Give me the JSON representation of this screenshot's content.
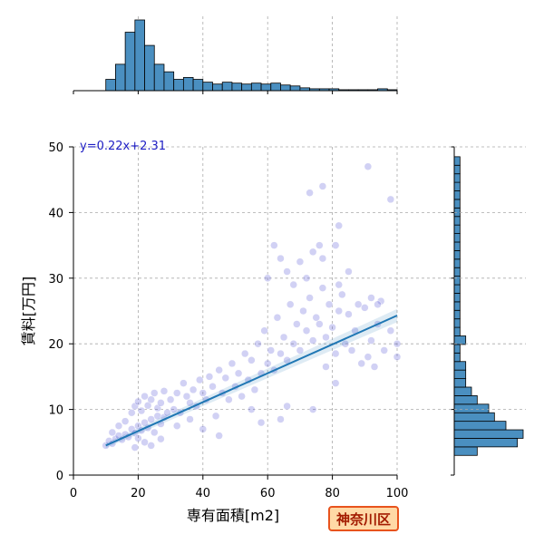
{
  "badge": {
    "text": "神奈川区"
  },
  "chart_data": {
    "type": "scatter",
    "xlabel": "専有面積[m2]",
    "ylabel": "賃料[万円]",
    "xlim": [
      0,
      100
    ],
    "ylim": [
      0,
      50
    ],
    "xticks": [
      0,
      20,
      40,
      60,
      80,
      100
    ],
    "yticks": [
      0,
      10,
      20,
      30,
      40,
      50
    ],
    "grid": true,
    "regression": {
      "equation": "y=0.22x+2.31",
      "slope": 0.22,
      "intercept": 2.31,
      "x_range": [
        10,
        100
      ]
    },
    "colors": {
      "points": "#5a5ad6",
      "line": "#1f77b4",
      "hist": "#4a8fc0",
      "equation": "#1d1dc4"
    },
    "scatter_points": [
      [
        10,
        4.5
      ],
      [
        11,
        5.2
      ],
      [
        12,
        4.8
      ],
      [
        13,
        5.5
      ],
      [
        14,
        6
      ],
      [
        15,
        5.4
      ],
      [
        16,
        6.2
      ],
      [
        17,
        5.8
      ],
      [
        18,
        7
      ],
      [
        19,
        6.4
      ],
      [
        20,
        7.5
      ],
      [
        20,
        5.6
      ],
      [
        21,
        6.8
      ],
      [
        22,
        8
      ],
      [
        23,
        7.2
      ],
      [
        24,
        8.5
      ],
      [
        25,
        6.5
      ],
      [
        26,
        9
      ],
      [
        27,
        7.8
      ],
      [
        28,
        8.8
      ],
      [
        12,
        6.5
      ],
      [
        14,
        7.5
      ],
      [
        16,
        8.2
      ],
      [
        18,
        9.5
      ],
      [
        19,
        10.5
      ],
      [
        20,
        11.2
      ],
      [
        21,
        9.8
      ],
      [
        22,
        12
      ],
      [
        23,
        10.6
      ],
      [
        24,
        11.5
      ],
      [
        25,
        12.5
      ],
      [
        26,
        10.2
      ],
      [
        27,
        11
      ],
      [
        28,
        12.8
      ],
      [
        30,
        11.5
      ],
      [
        31,
        10
      ],
      [
        32,
        12.5
      ],
      [
        33,
        9.5
      ],
      [
        34,
        14
      ],
      [
        35,
        12
      ],
      [
        36,
        11
      ],
      [
        37,
        13
      ],
      [
        38,
        10.5
      ],
      [
        39,
        14.5
      ],
      [
        40,
        12.5
      ],
      [
        41,
        11.5
      ],
      [
        42,
        15
      ],
      [
        43,
        13.5
      ],
      [
        44,
        9
      ],
      [
        45,
        16
      ],
      [
        46,
        12.5
      ],
      [
        47,
        14.8
      ],
      [
        48,
        11.5
      ],
      [
        49,
        17
      ],
      [
        50,
        13.5
      ],
      [
        51,
        15.5
      ],
      [
        52,
        12
      ],
      [
        53,
        18.5
      ],
      [
        54,
        14.5
      ],
      [
        55,
        17.5
      ],
      [
        56,
        13
      ],
      [
        57,
        20
      ],
      [
        58,
        15.5
      ],
      [
        59,
        22
      ],
      [
        60,
        17
      ],
      [
        61,
        19
      ],
      [
        62,
        16
      ],
      [
        63,
        24
      ],
      [
        64,
        18.5
      ],
      [
        65,
        21
      ],
      [
        66,
        17.5
      ],
      [
        67,
        26
      ],
      [
        68,
        20
      ],
      [
        69,
        23
      ],
      [
        70,
        19
      ],
      [
        71,
        25
      ],
      [
        72,
        22
      ],
      [
        73,
        27
      ],
      [
        74,
        20.5
      ],
      [
        75,
        24
      ],
      [
        76,
        23
      ],
      [
        77,
        28.5
      ],
      [
        78,
        21
      ],
      [
        79,
        26
      ],
      [
        80,
        22.5
      ],
      [
        81,
        18.5
      ],
      [
        82,
        25
      ],
      [
        83,
        27.5
      ],
      [
        84,
        20
      ],
      [
        85,
        24.5
      ],
      [
        86,
        19
      ],
      [
        87,
        22
      ],
      [
        88,
        26
      ],
      [
        89,
        17
      ],
      [
        90,
        25.5
      ],
      [
        91,
        18
      ],
      [
        92,
        20.5
      ],
      [
        94,
        23
      ],
      [
        95,
        26.5
      ],
      [
        96,
        19
      ],
      [
        98,
        22
      ],
      [
        100,
        20
      ],
      [
        100,
        18
      ],
      [
        93,
        16.5
      ],
      [
        74,
        10
      ],
      [
        81,
        14
      ],
      [
        78,
        16.5
      ],
      [
        64,
        8.5
      ],
      [
        66,
        10.5
      ],
      [
        55,
        10
      ],
      [
        58,
        8
      ],
      [
        45,
        6
      ],
      [
        40,
        7
      ],
      [
        36,
        8.5
      ],
      [
        32,
        7.5
      ],
      [
        29,
        9.5
      ],
      [
        27,
        5.5
      ],
      [
        24,
        4.5
      ],
      [
        22,
        5
      ],
      [
        19,
        4.2
      ],
      [
        62,
        35
      ],
      [
        64,
        33
      ],
      [
        66,
        31
      ],
      [
        68,
        29
      ],
      [
        70,
        32.5
      ],
      [
        72,
        30
      ],
      [
        74,
        34
      ],
      [
        76,
        35
      ],
      [
        77,
        33
      ],
      [
        60,
        30
      ],
      [
        82,
        29
      ],
      [
        85,
        31
      ],
      [
        92,
        27
      ],
      [
        94,
        26
      ],
      [
        73,
        43
      ],
      [
        77,
        44
      ],
      [
        81,
        35
      ],
      [
        82,
        38
      ],
      [
        91,
        47
      ],
      [
        98,
        42
      ]
    ],
    "x_hist": {
      "bin_start": 10,
      "bin_width": 3,
      "counts": [
        12,
        28,
        62,
        75,
        48,
        28,
        20,
        12,
        14,
        12,
        9,
        7,
        9,
        8,
        7,
        8,
        7,
        8,
        6,
        5,
        3,
        2,
        2,
        2,
        1,
        1,
        1,
        1,
        2,
        1
      ]
    },
    "y_hist": {
      "bin_start": 3,
      "bin_width": 1.3,
      "counts": [
        4,
        11,
        12,
        9,
        7,
        6,
        4,
        3,
        2,
        2,
        2,
        1,
        1,
        2,
        1,
        1,
        1,
        1,
        1,
        1,
        1,
        1,
        1,
        1,
        1,
        1,
        1,
        1,
        1,
        1,
        1,
        1,
        1,
        1,
        1
      ]
    }
  }
}
